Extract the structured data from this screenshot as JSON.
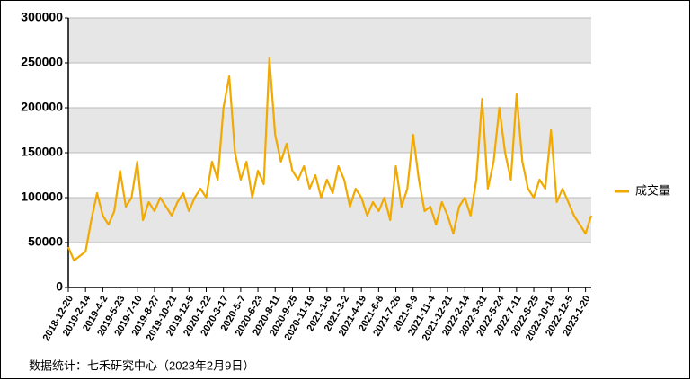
{
  "chart_data": {
    "type": "line",
    "categories": [
      "2018-12-20",
      null,
      null,
      "2019-2-14",
      null,
      null,
      "2019-4-2",
      null,
      null,
      "2019-5-23",
      null,
      null,
      "2019-7-10",
      null,
      null,
      "2019-8-27",
      null,
      null,
      "2019-10-21",
      null,
      null,
      "2019-12-5",
      null,
      null,
      "2020-1-22",
      null,
      null,
      "2020-3-17",
      null,
      null,
      "2020-5-7",
      null,
      null,
      "2020-6-23",
      null,
      null,
      "2020-8-11",
      null,
      null,
      "2020-9-25",
      null,
      null,
      "2020-11-19",
      null,
      null,
      "2021-1-6",
      null,
      null,
      "2021-3-2",
      null,
      null,
      "2021-4-19",
      null,
      null,
      "2021-6-8",
      null,
      null,
      "2021-7-26",
      null,
      null,
      "2021-9-9",
      null,
      null,
      "2021-11-4",
      null,
      null,
      "2021-12-21",
      null,
      null,
      "2022-2-14",
      null,
      null,
      "2022-3-31",
      null,
      null,
      "2022-5-24",
      null,
      null,
      "2022-7-11",
      null,
      null,
      "2022-8-25",
      null,
      null,
      "2022-10-19",
      null,
      null,
      "2022-12-5",
      null,
      null,
      "2023-1-20",
      null
    ],
    "series": [
      {
        "name": "成交量",
        "color": "#f2a900",
        "values": [
          45000,
          30000,
          35000,
          40000,
          75000,
          105000,
          80000,
          70000,
          85000,
          130000,
          90000,
          100000,
          140000,
          75000,
          95000,
          85000,
          100000,
          90000,
          80000,
          95000,
          105000,
          85000,
          100000,
          110000,
          100000,
          140000,
          120000,
          200000,
          235000,
          150000,
          120000,
          140000,
          100000,
          130000,
          115000,
          255000,
          170000,
          140000,
          160000,
          130000,
          120000,
          135000,
          110000,
          125000,
          100000,
          120000,
          105000,
          135000,
          120000,
          90000,
          110000,
          100000,
          80000,
          95000,
          85000,
          100000,
          75000,
          135000,
          90000,
          110000,
          170000,
          120000,
          85000,
          90000,
          70000,
          95000,
          80000,
          60000,
          90000,
          100000,
          80000,
          120000,
          210000,
          110000,
          140000,
          200000,
          150000,
          120000,
          215000,
          140000,
          110000,
          100000,
          120000,
          110000,
          175000,
          95000,
          110000,
          95000,
          80000,
          70000,
          60000,
          80000
        ]
      }
    ],
    "ylim": [
      0,
      300000
    ],
    "yticks": [
      0,
      50000,
      100000,
      150000,
      200000,
      250000,
      300000
    ],
    "grid": true,
    "legend": "right",
    "source": "数据统计：七禾研究中心（2023年2月9日）"
  }
}
